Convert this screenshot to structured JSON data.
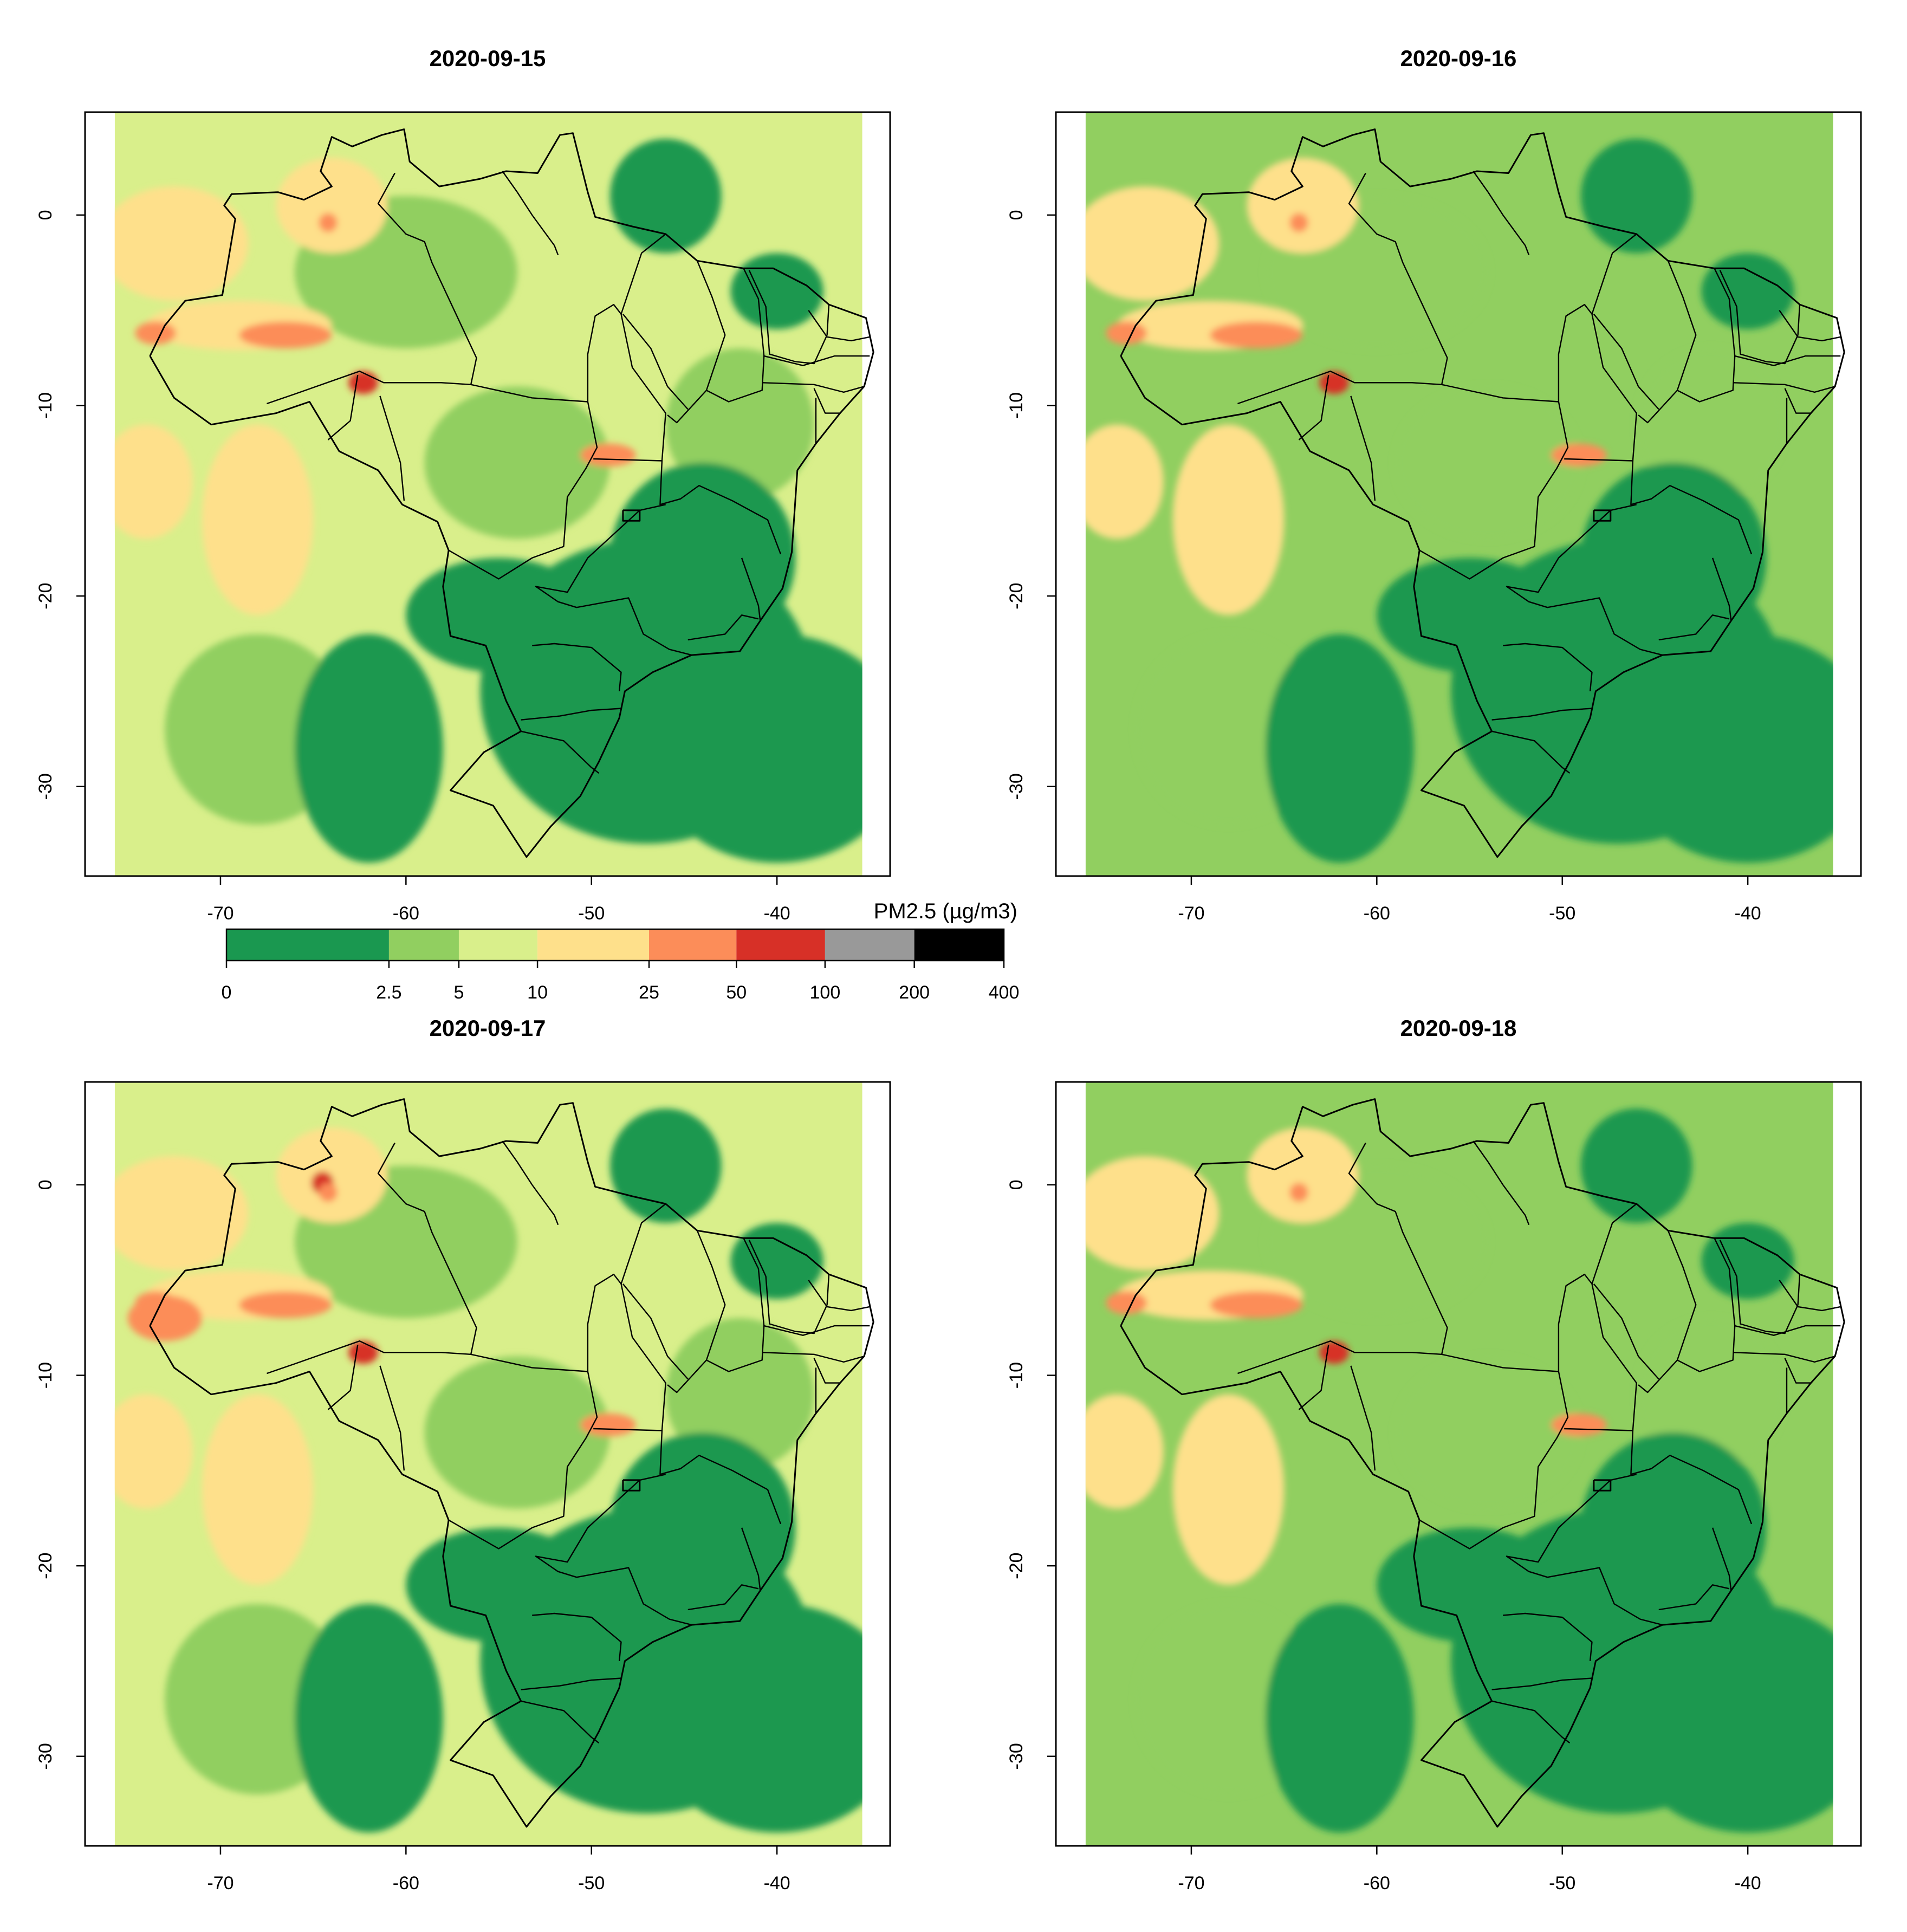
{
  "figure": {
    "panels": [
      {
        "date": "2020-09-15",
        "dominant": "mixed"
      },
      {
        "date": "2020-09-16",
        "dominant": "greener"
      },
      {
        "date": "2020-09-17",
        "dominant": "mixed"
      },
      {
        "date": "2020-09-18",
        "dominant": "greener"
      }
    ]
  },
  "map": {
    "xlim": [
      -77.3,
      -33.9
    ],
    "ylim": [
      -34.7,
      5.4
    ],
    "x_ticks": [
      "-70",
      "-60",
      "-50",
      "-40"
    ],
    "x_tick_values": [
      -70,
      -60,
      -50,
      -40
    ],
    "y_ticks": [
      "0",
      "-10",
      "-20",
      "-30"
    ],
    "y_tick_values": [
      0,
      -10,
      -20,
      -30
    ],
    "data_extent_lon": [
      -75.7,
      -35.4
    ],
    "data_extent_lat": [
      -34.7,
      5.4
    ]
  },
  "legend": {
    "title": "PM2.5 (µg/m3)",
    "breaks": [
      "0",
      "2.5",
      "5",
      "10",
      "25",
      "50",
      "100",
      "200",
      "400"
    ],
    "colors": [
      "#1a9850",
      "#91cf60",
      "#d9ef8b",
      "#fee08b",
      "#fc8d59",
      "#d73027",
      "#999999",
      "#000000"
    ]
  },
  "chart_data": {
    "type": "heatmap",
    "variable": "PM2.5",
    "unit": "µg/m3",
    "dates": [
      "2020-09-15",
      "2020-09-16",
      "2020-09-17",
      "2020-09-18"
    ],
    "color_breaks": [
      0,
      2.5,
      5,
      10,
      25,
      50,
      100,
      200,
      400
    ],
    "color_classes": [
      "#1a9850",
      "#91cf60",
      "#d9ef8b",
      "#fee08b",
      "#fc8d59",
      "#d73027",
      "#999999",
      "#000000"
    ],
    "xlim": [
      -77.3,
      -33.9
    ],
    "ylim": [
      -34.7,
      5.4
    ],
    "x_ticks": [
      -70,
      -60,
      -50,
      -40
    ],
    "y_ticks": [
      0,
      -10,
      -20,
      -30
    ]
  }
}
